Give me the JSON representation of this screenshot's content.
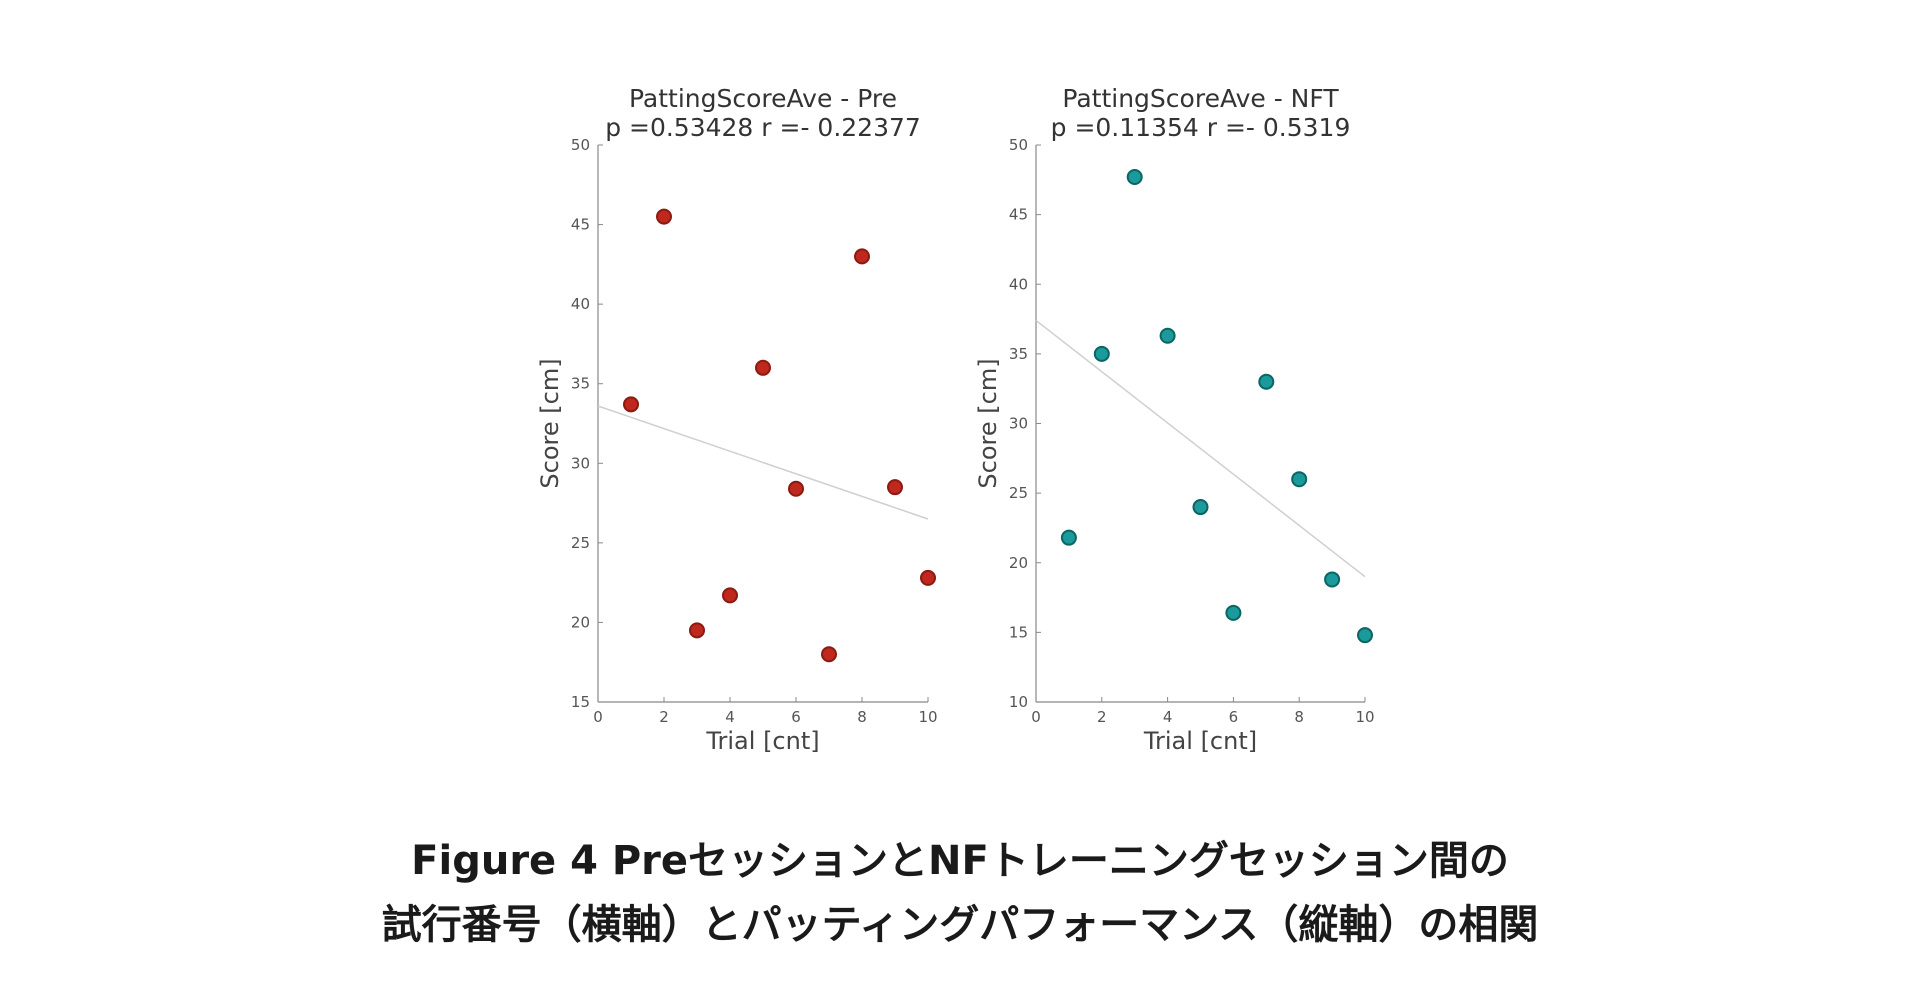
{
  "chart_data": [
    {
      "type": "scatter",
      "title": "PattingScoreAve -  Pre",
      "subtitle": "p =0.53428    r =- 0.22377",
      "xlabel": "Trial [cnt]",
      "ylabel": "Score [cm]",
      "xlim": [
        0,
        10
      ],
      "ylim": [
        15,
        50
      ],
      "xticks": [
        0,
        2,
        4,
        6,
        8,
        10
      ],
      "yticks": [
        15,
        20,
        25,
        30,
        35,
        40,
        45,
        50
      ],
      "color": "#c0281e",
      "edge_color": "#8a1a12",
      "points": [
        {
          "x": 1,
          "y": 33.7
        },
        {
          "x": 2,
          "y": 45.5
        },
        {
          "x": 3,
          "y": 19.5
        },
        {
          "x": 4,
          "y": 21.7
        },
        {
          "x": 5,
          "y": 36.0
        },
        {
          "x": 6,
          "y": 28.4
        },
        {
          "x": 7,
          "y": 18.0
        },
        {
          "x": 8,
          "y": 43.0
        },
        {
          "x": 9,
          "y": 28.5
        },
        {
          "x": 10,
          "y": 22.8
        }
      ],
      "fit_line": {
        "x": [
          0,
          10
        ],
        "y": [
          33.6,
          26.5
        ]
      }
    },
    {
      "type": "scatter",
      "title": "PattingScoreAve -  NFT",
      "subtitle": "p =0.11354    r =- 0.5319",
      "xlabel": "Trial [cnt]",
      "ylabel": "Score [cm]",
      "xlim": [
        0,
        10
      ],
      "ylim": [
        10,
        50
      ],
      "xticks": [
        0,
        2,
        4,
        6,
        8,
        10
      ],
      "yticks": [
        10,
        15,
        20,
        25,
        30,
        35,
        40,
        45,
        50
      ],
      "color": "#1a9a9a",
      "edge_color": "#0c6464",
      "points": [
        {
          "x": 1,
          "y": 21.8
        },
        {
          "x": 2,
          "y": 35.0
        },
        {
          "x": 3,
          "y": 47.7
        },
        {
          "x": 4,
          "y": 36.3
        },
        {
          "x": 5,
          "y": 24.0
        },
        {
          "x": 6,
          "y": 16.4
        },
        {
          "x": 7,
          "y": 33.0
        },
        {
          "x": 8,
          "y": 26.0
        },
        {
          "x": 9,
          "y": 18.8
        },
        {
          "x": 10,
          "y": 14.8
        }
      ],
      "fit_line": {
        "x": [
          0,
          10
        ],
        "y": [
          37.4,
          19.0
        ]
      }
    }
  ],
  "caption": {
    "line1": "Figure 4 PreセッションとNFトレーニングセッション間の",
    "line2": "試行番号（横軸）とパッティングパフォーマンス（縦軸）の相関"
  },
  "colors": {
    "axis": "#888888",
    "fit_line": "#cfcfcf"
  }
}
